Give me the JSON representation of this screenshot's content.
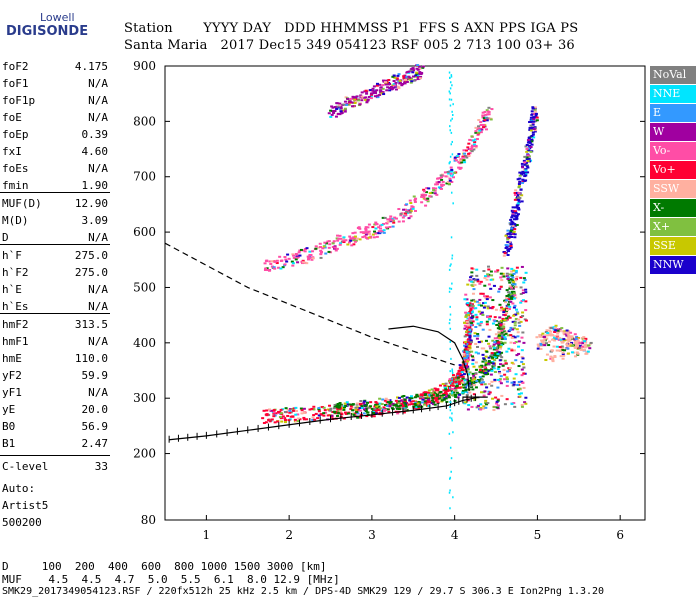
{
  "logo": {
    "top": "Lowell",
    "bottom": "DIGISONDE"
  },
  "header": {
    "line1": "Station       YYYY DAY   DDD HHMMSS P1  FFS S AXN PPS IGA PS",
    "line2": "Santa Maria   2017 Dec15 349 054123 RSF 005 2 713 100 03+ 36"
  },
  "params": [
    {
      "name": "foF2",
      "value": "4.175"
    },
    {
      "name": "foF1",
      "value": "N/A"
    },
    {
      "name": "foF1p",
      "value": "N/A"
    },
    {
      "name": "foE",
      "value": "N/A"
    },
    {
      "name": "foEp",
      "value": "0.39"
    },
    {
      "name": "fxI",
      "value": "4.60"
    },
    {
      "name": "foEs",
      "value": "N/A"
    },
    {
      "name": "fmin",
      "value": "1.90"
    },
    {
      "name": "MUF(D)",
      "value": "12.90"
    },
    {
      "name": "M(D)",
      "value": "3.09"
    },
    {
      "name": "D",
      "value": "N/A"
    },
    {
      "name": "h`F",
      "value": "275.0"
    },
    {
      "name": "h`F2",
      "value": "275.0"
    },
    {
      "name": "h`E",
      "value": "N/A"
    },
    {
      "name": "h`Es",
      "value": "N/A"
    },
    {
      "name": "hmF2",
      "value": "313.5"
    },
    {
      "name": "hmF1",
      "value": "N/A"
    },
    {
      "name": "hmE",
      "value": "110.0"
    },
    {
      "name": "yF2",
      "value": "59.9"
    },
    {
      "name": "yF1",
      "value": "N/A"
    },
    {
      "name": "yE",
      "value": "20.0"
    },
    {
      "name": "B0",
      "value": "56.9"
    },
    {
      "name": "B1",
      "value": "2.47"
    },
    {
      "name": "C-level",
      "value": "33"
    }
  ],
  "auto": {
    "line1": "Auto:",
    "line2": "Artist5",
    "line3": "500200"
  },
  "legend": [
    {
      "label": "NoVal",
      "color": "#808080"
    },
    {
      "label": "NNE",
      "color": "#00e5ff"
    },
    {
      "label": "E",
      "color": "#3399ff"
    },
    {
      "label": "W",
      "color": "#a000a0"
    },
    {
      "label": "Vo-",
      "color": "#ff4da6"
    },
    {
      "label": "Vo+",
      "color": "#ff0033"
    },
    {
      "label": "SSW",
      "color": "#ffb0a0"
    },
    {
      "label": "X-",
      "color": "#007a00"
    },
    {
      "label": "X+",
      "color": "#80c040"
    },
    {
      "label": "SSE",
      "color": "#c8c800"
    },
    {
      "label": "NNW",
      "color": "#1a00cc"
    }
  ],
  "table": {
    "row1": "D     100  200  400  600  800 1000 1500 3000 [km]",
    "row2": "MUF    4.5  4.5  4.7  5.0  5.5  6.1  8.0 12.9 [MHz]"
  },
  "footer": "SMK29_2017349054123.RSF / 220fx512h 25 kHz 2.5 km / DPS-4D SMK29 129 / 29.7 S 306.3 E Ion2Png 1.3.20",
  "chart_data": {
    "type": "scatter",
    "title": "",
    "xlabel": "",
    "ylabel": "",
    "xlim": [
      0.5,
      6.3
    ],
    "ylim": [
      80,
      900
    ],
    "x_ticks": [
      1,
      2,
      3,
      4,
      5,
      6
    ],
    "y_ticks": [
      80,
      200,
      300,
      400,
      500,
      600,
      700,
      800,
      900
    ],
    "grid": false,
    "legend_position": "right",
    "traces": [
      {
        "name": "ordinary-trace",
        "color": "#ff0033",
        "points": [
          [
            1.7,
            268
          ],
          [
            2.0,
            272
          ],
          [
            2.5,
            276
          ],
          [
            3.0,
            282
          ],
          [
            3.4,
            290
          ],
          [
            3.7,
            302
          ],
          [
            3.9,
            318
          ],
          [
            4.05,
            340
          ],
          [
            4.12,
            370
          ],
          [
            4.16,
            420
          ],
          [
            4.175,
            470
          ]
        ]
      },
      {
        "name": "upper-echo",
        "color": "#ff4da6",
        "points": [
          [
            1.7,
            540
          ],
          [
            2.2,
            560
          ],
          [
            2.7,
            590
          ],
          [
            3.1,
            610
          ],
          [
            3.5,
            650
          ],
          [
            3.9,
            700
          ],
          [
            4.2,
            760
          ],
          [
            4.4,
            820
          ]
        ]
      },
      {
        "name": "high-echo",
        "color": "#a000a0",
        "points": [
          [
            2.5,
            820
          ],
          [
            2.8,
            840
          ],
          [
            3.1,
            860
          ],
          [
            3.4,
            880
          ],
          [
            3.6,
            895
          ]
        ]
      },
      {
        "name": "extraordinary-trace",
        "color": "#007a00",
        "points": [
          [
            2.5,
            282
          ],
          [
            3.0,
            286
          ],
          [
            3.5,
            295
          ],
          [
            4.0,
            310
          ],
          [
            4.3,
            340
          ],
          [
            4.5,
            390
          ],
          [
            4.6,
            450
          ],
          [
            4.7,
            520
          ]
        ]
      },
      {
        "name": "oblique-echo",
        "color": "#1a00cc",
        "points": [
          [
            4.6,
            560
          ],
          [
            4.7,
            620
          ],
          [
            4.8,
            700
          ],
          [
            4.9,
            760
          ],
          [
            4.95,
            820
          ]
        ]
      },
      {
        "name": "ssw-spread",
        "color": "#ffb0a0",
        "points": [
          [
            5.0,
            400
          ],
          [
            5.2,
            420
          ],
          [
            5.4,
            405
          ],
          [
            5.6,
            395
          ],
          [
            5.1,
            380
          ]
        ]
      }
    ],
    "profile_curve": [
      [
        4.175,
        313
      ],
      [
        4.16,
        340
      ],
      [
        4.1,
        370
      ],
      [
        4.0,
        400
      ],
      [
        3.8,
        420
      ],
      [
        3.5,
        430
      ],
      [
        3.2,
        425
      ]
    ],
    "dashed_curve": [
      [
        0.5,
        580
      ],
      [
        1.0,
        540
      ],
      [
        1.5,
        500
      ],
      [
        2.0,
        470
      ],
      [
        2.5,
        440
      ],
      [
        3.0,
        410
      ],
      [
        3.5,
        385
      ],
      [
        4.0,
        360
      ]
    ],
    "model_trace": [
      [
        0.55,
        225
      ],
      [
        1.0,
        232
      ],
      [
        1.5,
        242
      ],
      [
        2.0,
        252
      ],
      [
        2.5,
        262
      ],
      [
        3.0,
        270
      ],
      [
        3.5,
        278
      ],
      [
        3.9,
        286
      ],
      [
        4.1,
        296
      ],
      [
        4.3,
        302
      ]
    ]
  }
}
